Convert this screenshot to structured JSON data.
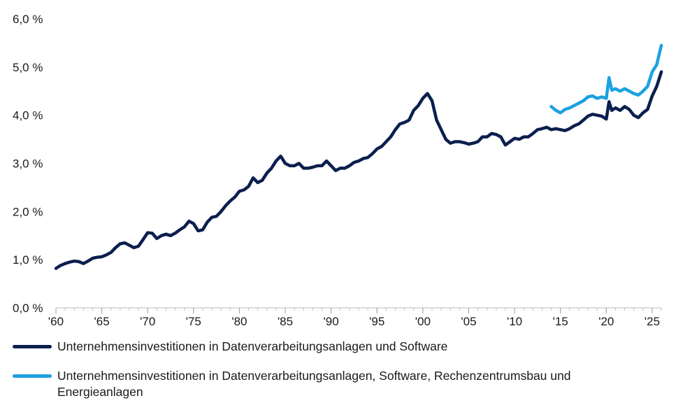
{
  "chart_data": {
    "type": "line",
    "title": "",
    "xlabel": "",
    "ylabel": "",
    "xlim": [
      1960,
      2026
    ],
    "ylim": [
      0,
      6
    ],
    "y_ticks": [
      0,
      1,
      2,
      3,
      4,
      5,
      6
    ],
    "y_tick_labels": [
      "0,0 %",
      "1,0 %",
      "2,0 %",
      "3,0 %",
      "4,0 %",
      "5,0 %",
      "6,0 %"
    ],
    "x_ticks": [
      1960,
      1965,
      1970,
      1975,
      1980,
      1985,
      1990,
      1995,
      2000,
      2005,
      2010,
      2015,
      2020,
      2025
    ],
    "x_tick_labels": [
      "'60",
      "'65",
      "'70",
      "'75",
      "'80",
      "'85",
      "'90",
      "'95",
      "'00",
      "'05",
      "'10",
      "'15",
      "'20",
      "'25"
    ],
    "grid": false,
    "legend_position": "bottom",
    "series": [
      {
        "name": "Unternehmensinvestitionen in Datenverarbeitungsanlagen und Software",
        "color": "#0b1f4d",
        "points": [
          [
            1960.0,
            0.82
          ],
          [
            1960.5,
            0.88
          ],
          [
            1961.0,
            0.92
          ],
          [
            1961.5,
            0.95
          ],
          [
            1962.0,
            0.97
          ],
          [
            1962.5,
            0.96
          ],
          [
            1963.0,
            0.92
          ],
          [
            1963.5,
            0.97
          ],
          [
            1964.0,
            1.03
          ],
          [
            1964.5,
            1.05
          ],
          [
            1965.0,
            1.06
          ],
          [
            1965.5,
            1.1
          ],
          [
            1966.0,
            1.15
          ],
          [
            1966.5,
            1.25
          ],
          [
            1967.0,
            1.33
          ],
          [
            1967.5,
            1.35
          ],
          [
            1968.0,
            1.3
          ],
          [
            1968.5,
            1.25
          ],
          [
            1969.0,
            1.28
          ],
          [
            1969.5,
            1.42
          ],
          [
            1970.0,
            1.56
          ],
          [
            1970.5,
            1.55
          ],
          [
            1971.0,
            1.44
          ],
          [
            1971.5,
            1.5
          ],
          [
            1972.0,
            1.53
          ],
          [
            1972.5,
            1.5
          ],
          [
            1973.0,
            1.55
          ],
          [
            1973.5,
            1.62
          ],
          [
            1974.0,
            1.68
          ],
          [
            1974.5,
            1.8
          ],
          [
            1975.0,
            1.75
          ],
          [
            1975.5,
            1.6
          ],
          [
            1976.0,
            1.62
          ],
          [
            1976.5,
            1.78
          ],
          [
            1977.0,
            1.88
          ],
          [
            1977.5,
            1.9
          ],
          [
            1978.0,
            2.0
          ],
          [
            1978.5,
            2.12
          ],
          [
            1979.0,
            2.22
          ],
          [
            1979.5,
            2.3
          ],
          [
            1980.0,
            2.42
          ],
          [
            1980.5,
            2.45
          ],
          [
            1981.0,
            2.52
          ],
          [
            1981.5,
            2.7
          ],
          [
            1982.0,
            2.6
          ],
          [
            1982.5,
            2.65
          ],
          [
            1983.0,
            2.8
          ],
          [
            1983.5,
            2.9
          ],
          [
            1984.0,
            3.05
          ],
          [
            1984.5,
            3.15
          ],
          [
            1985.0,
            3.0
          ],
          [
            1985.5,
            2.95
          ],
          [
            1986.0,
            2.95
          ],
          [
            1986.5,
            3.0
          ],
          [
            1987.0,
            2.9
          ],
          [
            1987.5,
            2.9
          ],
          [
            1988.0,
            2.92
          ],
          [
            1988.5,
            2.95
          ],
          [
            1989.0,
            2.95
          ],
          [
            1989.5,
            3.05
          ],
          [
            1990.0,
            2.95
          ],
          [
            1990.5,
            2.85
          ],
          [
            1991.0,
            2.9
          ],
          [
            1991.5,
            2.9
          ],
          [
            1992.0,
            2.95
          ],
          [
            1992.5,
            3.02
          ],
          [
            1993.0,
            3.05
          ],
          [
            1993.5,
            3.1
          ],
          [
            1994.0,
            3.12
          ],
          [
            1994.5,
            3.2
          ],
          [
            1995.0,
            3.3
          ],
          [
            1995.5,
            3.35
          ],
          [
            1996.0,
            3.45
          ],
          [
            1996.5,
            3.55
          ],
          [
            1997.0,
            3.7
          ],
          [
            1997.5,
            3.82
          ],
          [
            1998.0,
            3.85
          ],
          [
            1998.5,
            3.9
          ],
          [
            1999.0,
            4.1
          ],
          [
            1999.5,
            4.2
          ],
          [
            2000.0,
            4.35
          ],
          [
            2000.5,
            4.45
          ],
          [
            2001.0,
            4.3
          ],
          [
            2001.5,
            3.9
          ],
          [
            2002.0,
            3.7
          ],
          [
            2002.5,
            3.5
          ],
          [
            2003.0,
            3.42
          ],
          [
            2003.5,
            3.45
          ],
          [
            2004.0,
            3.45
          ],
          [
            2004.5,
            3.43
          ],
          [
            2005.0,
            3.4
          ],
          [
            2005.5,
            3.42
          ],
          [
            2006.0,
            3.45
          ],
          [
            2006.5,
            3.55
          ],
          [
            2007.0,
            3.55
          ],
          [
            2007.5,
            3.62
          ],
          [
            2008.0,
            3.6
          ],
          [
            2008.5,
            3.55
          ],
          [
            2009.0,
            3.38
          ],
          [
            2009.5,
            3.45
          ],
          [
            2010.0,
            3.52
          ],
          [
            2010.5,
            3.5
          ],
          [
            2011.0,
            3.55
          ],
          [
            2011.5,
            3.55
          ],
          [
            2012.0,
            3.62
          ],
          [
            2012.5,
            3.7
          ],
          [
            2013.0,
            3.72
          ],
          [
            2013.5,
            3.75
          ],
          [
            2014.0,
            3.7
          ],
          [
            2014.5,
            3.72
          ],
          [
            2015.0,
            3.7
          ],
          [
            2015.5,
            3.68
          ],
          [
            2016.0,
            3.72
          ],
          [
            2016.5,
            3.78
          ],
          [
            2017.0,
            3.82
          ],
          [
            2017.5,
            3.9
          ],
          [
            2018.0,
            3.98
          ],
          [
            2018.5,
            4.02
          ],
          [
            2019.0,
            4.0
          ],
          [
            2019.5,
            3.98
          ],
          [
            2020.0,
            3.92
          ],
          [
            2020.3,
            4.28
          ],
          [
            2020.6,
            4.1
          ],
          [
            2021.0,
            4.15
          ],
          [
            2021.5,
            4.1
          ],
          [
            2022.0,
            4.18
          ],
          [
            2022.5,
            4.12
          ],
          [
            2023.0,
            4.0
          ],
          [
            2023.5,
            3.95
          ],
          [
            2024.0,
            4.05
          ],
          [
            2024.5,
            4.12
          ],
          [
            2025.0,
            4.4
          ],
          [
            2025.5,
            4.6
          ],
          [
            2026.0,
            4.9
          ]
        ]
      },
      {
        "name": "Unternehmensinvestitionen in Datenverarbeitungsanlagen, Software, Rechenzentrumsbau und Energieanlagen",
        "color": "#1ba1e2",
        "points": [
          [
            2014.0,
            4.18
          ],
          [
            2014.5,
            4.1
          ],
          [
            2015.0,
            4.05
          ],
          [
            2015.5,
            4.12
          ],
          [
            2016.0,
            4.15
          ],
          [
            2016.5,
            4.2
          ],
          [
            2017.0,
            4.25
          ],
          [
            2017.5,
            4.3
          ],
          [
            2018.0,
            4.38
          ],
          [
            2018.5,
            4.4
          ],
          [
            2019.0,
            4.35
          ],
          [
            2019.5,
            4.38
          ],
          [
            2020.0,
            4.35
          ],
          [
            2020.3,
            4.78
          ],
          [
            2020.6,
            4.52
          ],
          [
            2021.0,
            4.55
          ],
          [
            2021.5,
            4.5
          ],
          [
            2022.0,
            4.55
          ],
          [
            2022.5,
            4.5
          ],
          [
            2023.0,
            4.45
          ],
          [
            2023.5,
            4.42
          ],
          [
            2024.0,
            4.5
          ],
          [
            2024.5,
            4.6
          ],
          [
            2025.0,
            4.9
          ],
          [
            2025.5,
            5.05
          ],
          [
            2026.0,
            5.45
          ]
        ]
      }
    ]
  }
}
